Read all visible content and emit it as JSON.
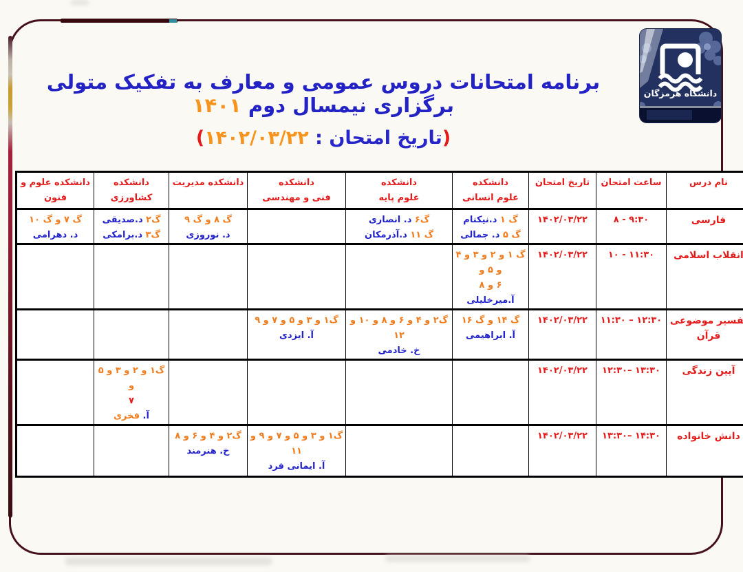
{
  "title": {
    "line1_text": "برنامه امتحانات دروس عمومی و معارف به تفکیک متولی برگزاری نیمسال دوم ",
    "line1_year": "۱۴۰۱",
    "line2_open": "(",
    "line2_label": "تاریخ امتحان : ",
    "line2_date": "۱۴۰۲/۰۳/۲۲",
    "line2_close": ")"
  },
  "logo": {
    "university_name": "دانشگاه هرمزگان"
  },
  "colors": {
    "title_blue": "#2222c5",
    "accent_orange": "#f7941d",
    "table_red": "#e31b1b",
    "group_orange": "#f07c1d",
    "instructor_blue": "#2323cb",
    "frame_maroon": "#451019",
    "frame_gold": "#c79a2e",
    "logo_navy": "#22315f"
  },
  "table": {
    "columns": [
      {
        "id": "name",
        "lines": [
          "نام درس"
        ]
      },
      {
        "id": "time",
        "lines": [
          "ساعت امتحان"
        ]
      },
      {
        "id": "date",
        "lines": [
          "تاریخ امتحان"
        ]
      },
      {
        "id": "hum",
        "lines": [
          "دانشکده",
          "علوم انسانی"
        ]
      },
      {
        "id": "sci",
        "lines": [
          "دانشکده",
          "علوم پایه"
        ]
      },
      {
        "id": "eng",
        "lines": [
          "دانشکده",
          "فنی و مهندسی"
        ]
      },
      {
        "id": "mgmt",
        "lines": [
          "دانشکده مدیریت"
        ]
      },
      {
        "id": "agri",
        "lines": [
          "دانشکده کشاورزی"
        ]
      },
      {
        "id": "tech",
        "lines": [
          "دانشکده علوم و",
          "فنون"
        ]
      }
    ],
    "rows": [
      {
        "cells": {
          "name": [
            [
              {
                "t": "فارسی",
                "c": "r"
              }
            ]
          ],
          "time": [
            [
              {
                "t": "۸ - ۹:۳۰",
                "c": "r",
                "ltr": true
              }
            ]
          ],
          "date": [
            [
              {
                "t": "۱۴۰۲/۰۳/۲۲",
                "c": "r",
                "ltr": true
              }
            ]
          ],
          "hum": [
            [
              {
                "t": "گ ۱ ",
                "c": "o"
              },
              {
                "t": "د.نیکنام",
                "c": "b"
              }
            ],
            [
              {
                "t": "گ ۵ ",
                "c": "o"
              },
              {
                "t": "د. جمالی",
                "c": "b"
              }
            ]
          ],
          "sci": [
            [
              {
                "t": "گ۶ ",
                "c": "o"
              },
              {
                "t": "د. انصاری",
                "c": "b"
              }
            ],
            [
              {
                "t": "گ ۱۱ ",
                "c": "o"
              },
              {
                "t": "د.آذرمکان",
                "c": "b"
              }
            ]
          ],
          "eng": [],
          "mgmt": [
            [
              {
                "t": "گ ۸ و گ ۹",
                "c": "o"
              }
            ],
            [
              {
                "t": "د. نوروزی",
                "c": "b"
              }
            ]
          ],
          "agri": [
            [
              {
                "t": "گ۲ ",
                "c": "o"
              },
              {
                "t": "د.صدیقی",
                "c": "b"
              }
            ],
            [
              {
                "t": "گ۳ ",
                "c": "o"
              },
              {
                "t": "د.برامکی",
                "c": "b"
              }
            ]
          ],
          "tech": [
            [
              {
                "t": "گ ۷ و گ ۱۰",
                "c": "o"
              }
            ],
            [
              {
                "t": "د. دهرامی",
                "c": "b"
              }
            ]
          ]
        }
      },
      {
        "cells": {
          "name": [
            [
              {
                "t": "انقلاب اسلامی",
                "c": "r"
              }
            ]
          ],
          "time": [
            [
              {
                "t": "۱۰ - ۱۱:۳۰",
                "c": "r",
                "ltr": true
              }
            ]
          ],
          "date": [
            [
              {
                "t": "۱۴۰۲/۰۳/۲۲",
                "c": "r",
                "ltr": true
              }
            ]
          ],
          "hum": [
            [
              {
                "t": "گ ۱ و ۲ و ۳ و ۴ و ۵ و",
                "c": "o"
              }
            ],
            [
              {
                "t": "۶ و ۸ ",
                "c": "o"
              },
              {
                "t": "آ.میرخلیلی",
                "c": "b"
              }
            ]
          ],
          "sci": [],
          "eng": [],
          "mgmt": [],
          "agri": [],
          "tech": []
        }
      },
      {
        "cells": {
          "name": [
            [
              {
                "t": "تفسیر موضوعی",
                "c": "r"
              }
            ],
            [
              {
                "t": "قرآن",
                "c": "r"
              }
            ]
          ],
          "time": [
            [
              {
                "t": "۱۱:۳۰ – ۱۲:۳۰",
                "c": "r",
                "ltr": true
              }
            ]
          ],
          "date": [
            [
              {
                "t": "۱۴۰۲/۰۳/۲۲",
                "c": "r",
                "ltr": true
              }
            ]
          ],
          "hum": [
            [
              {
                "t": "گ ۱۴ و گ ۱۶",
                "c": "o"
              }
            ],
            [
              {
                "t": "آ. ابراهیمی",
                "c": "b"
              }
            ]
          ],
          "sci": [
            [
              {
                "t": "گ۲ و ۴ و ۶ و ۸ و ۱۰ و",
                "c": "o"
              }
            ],
            [
              {
                "t": "۱۲",
                "c": "o"
              }
            ],
            [
              {
                "t": "خ. خادمی",
                "c": "b"
              }
            ]
          ],
          "eng": [
            [
              {
                "t": "گ۱ و ۳ و ۵ و ۷ و ۹",
                "c": "o"
              }
            ],
            [
              {
                "t": "آ. ایزدی",
                "c": "b"
              }
            ]
          ],
          "mgmt": [],
          "agri": [],
          "tech": []
        }
      },
      {
        "cells": {
          "name": [
            [
              {
                "t": "آیین زندگی",
                "c": "r"
              }
            ]
          ],
          "time": [
            [
              {
                "t": "۱۲:۳۰– ۱۳:۳۰",
                "c": "r",
                "ltr": true
              }
            ]
          ],
          "date": [
            [
              {
                "t": "۱۴۰۲/۰۳/۲۲",
                "c": "r",
                "ltr": true
              }
            ]
          ],
          "hum": [],
          "sci": [],
          "eng": [],
          "mgmt": [],
          "agri": [
            [
              {
                "t": "گ۱ و ۲ و ۳ و ۵ و",
                "c": "o"
              }
            ],
            [
              {
                "t": "۷",
                "c": "r"
              }
            ],
            [
              {
                "t": "آ. ",
                "c": "b"
              },
              {
                "t": "فخری",
                "c": "o"
              }
            ]
          ],
          "tech": []
        }
      },
      {
        "cells": {
          "name": [
            [
              {
                "t": "دانش خانواده",
                "c": "r"
              }
            ]
          ],
          "time": [
            [
              {
                "t": "۱۳:۳۰– ۱۴:۳۰",
                "c": "r",
                "ltr": true
              }
            ]
          ],
          "date": [
            [
              {
                "t": "۱۴۰۲/۰۳/۲۲",
                "c": "r",
                "ltr": true
              }
            ]
          ],
          "hum": [],
          "sci": [],
          "eng": [
            [
              {
                "t": "گ۱ و ۳ و ۵ و ۷ و ۹ و",
                "c": "o"
              }
            ],
            [
              {
                "t": "۱۱",
                "c": "o"
              }
            ],
            [
              {
                "t": "آ. ایمانی فرد",
                "c": "b"
              }
            ]
          ],
          "mgmt": [
            [
              {
                "t": "گ۲ و ۴ و ۶ و ۸",
                "c": "o"
              }
            ],
            [
              {
                "t": "خ. هنرمند",
                "c": "b"
              }
            ]
          ],
          "agri": [],
          "tech": []
        }
      }
    ]
  }
}
